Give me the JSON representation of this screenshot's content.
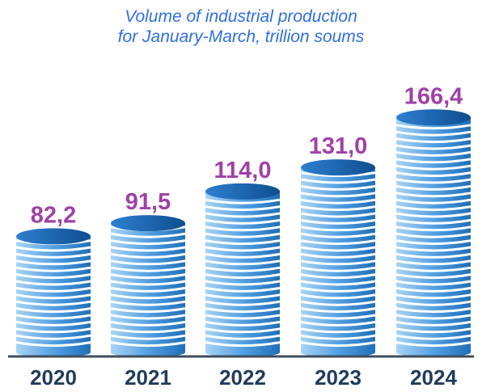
{
  "title_line1": "Volume of industrial production",
  "title_line2": "for January-March, trillion soums",
  "colors": {
    "title": "#2f6fe0",
    "value_label": "#a040a8",
    "year_label": "#1f3c5c",
    "axis": "#3e4e5c",
    "disc_light": "#a8d4f4",
    "disc_dark": "#1f6fb8",
    "disc_edge": "#0f4e90"
  },
  "chart_data": {
    "type": "bar",
    "title": "Volume of industrial production for January-March, trillion soums",
    "categories": [
      "2020",
      "2021",
      "2022",
      "2023",
      "2024"
    ],
    "values": [
      82.2,
      91.5,
      114.0,
      131.0,
      166.4
    ],
    "value_labels": [
      "82,2",
      "91,5",
      "114,0",
      "131,0",
      "166,4"
    ],
    "xlabel": "",
    "ylabel": "",
    "grid": false,
    "legend": "none"
  }
}
